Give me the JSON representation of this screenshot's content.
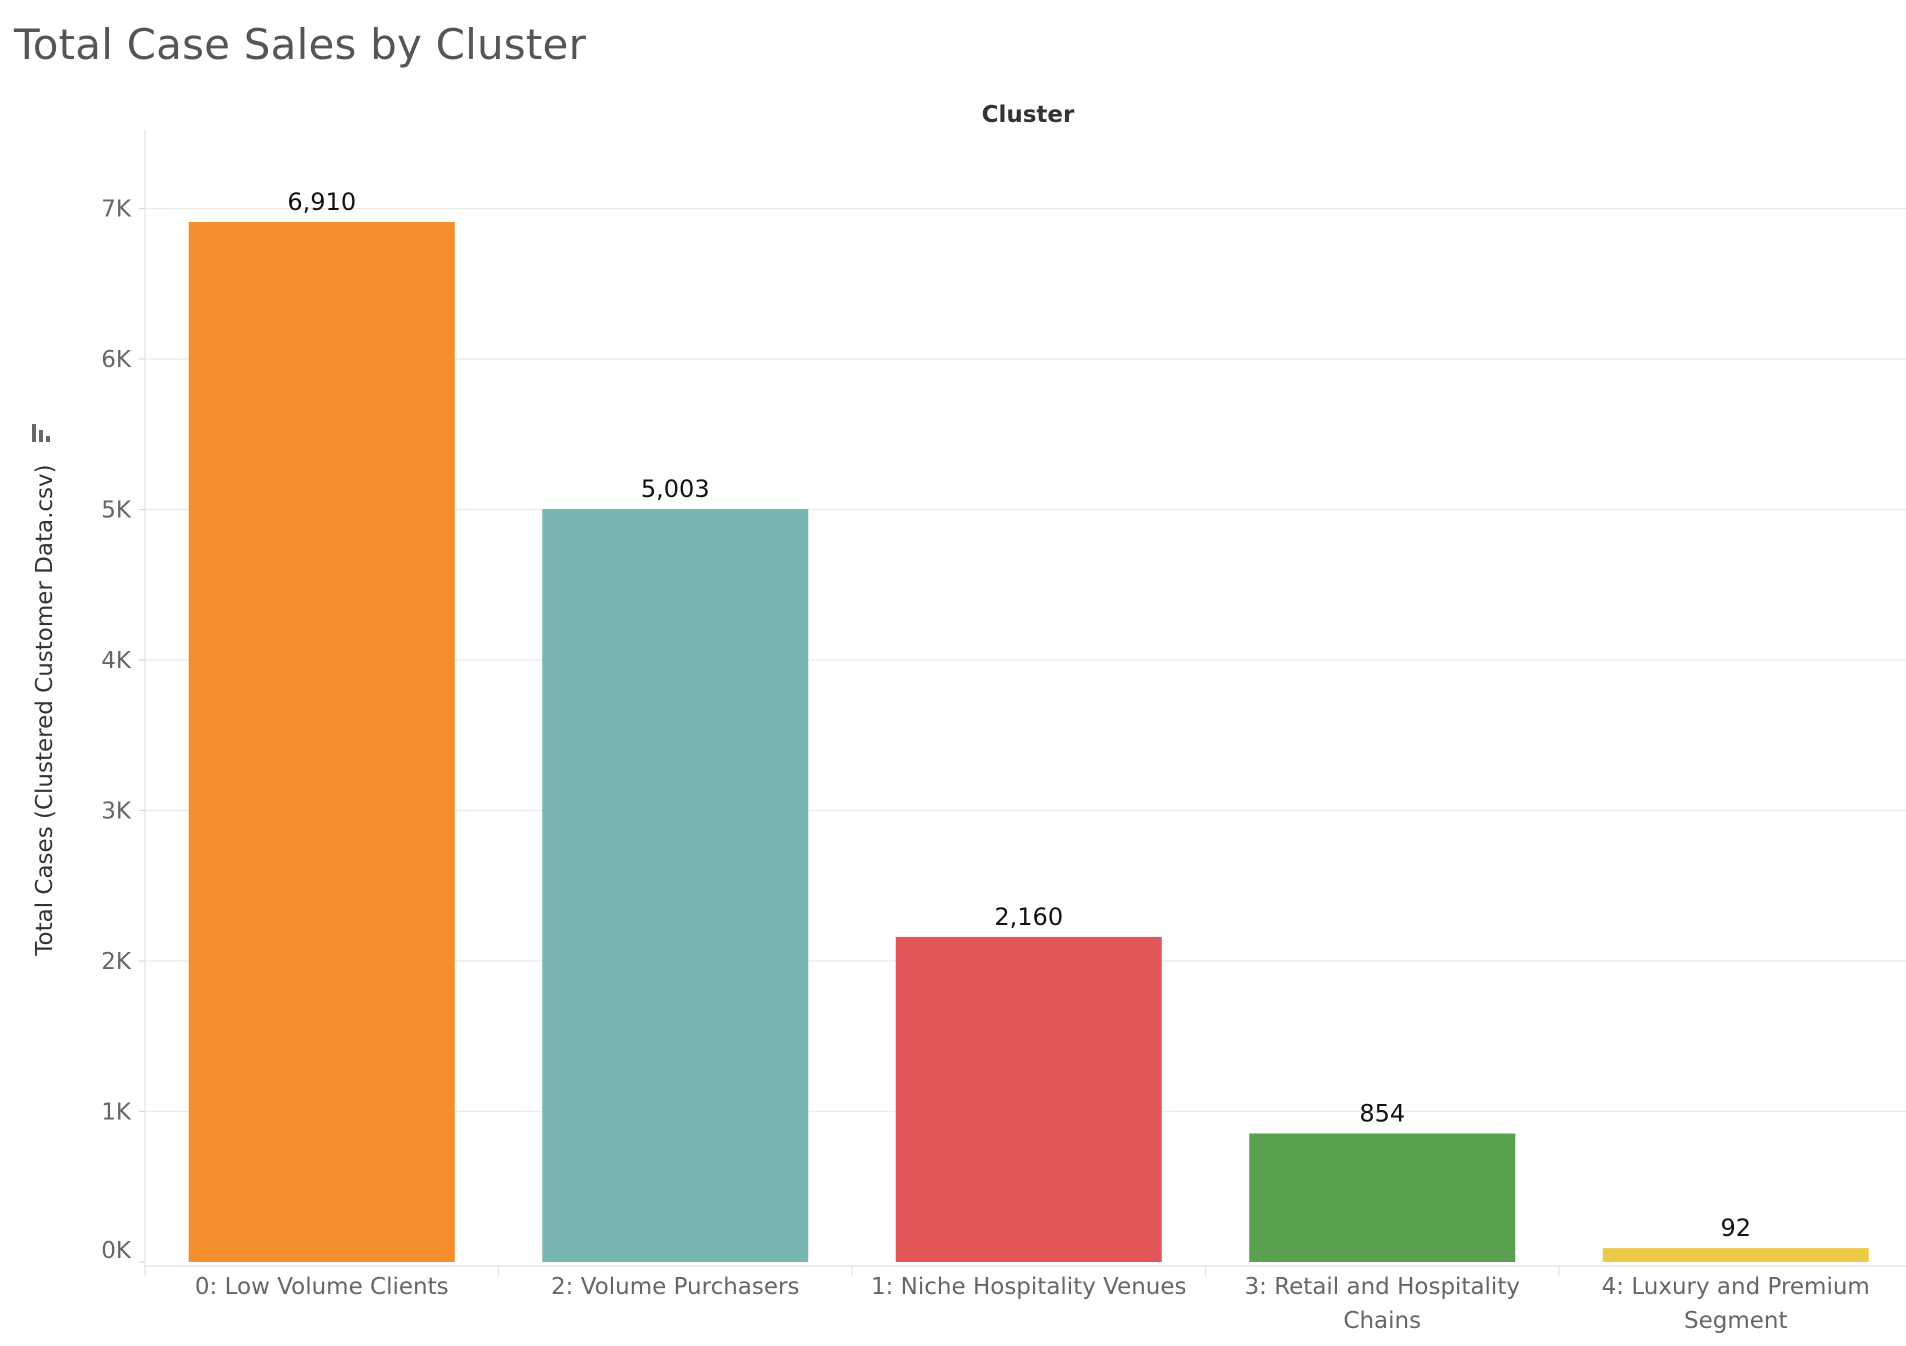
{
  "title": "Total Case Sales by Cluster",
  "chart_data": {
    "type": "bar",
    "header": "Cluster",
    "ylabel": "Total Cases (Clustered Customer Data.csv)",
    "xlabel": "",
    "ylim": [
      0,
      7400
    ],
    "yticks": [
      0,
      1000,
      2000,
      3000,
      4000,
      5000,
      6000,
      7000
    ],
    "ytick_labels": [
      "0K",
      "1K",
      "2K",
      "3K",
      "4K",
      "5K",
      "6K",
      "7K"
    ],
    "grid": true,
    "categories": [
      [
        "0: Low Volume Clients"
      ],
      [
        "2: Volume Purchasers"
      ],
      [
        "1: Niche Hospitality Venues"
      ],
      [
        "3: Retail and Hospitality",
        "Chains"
      ],
      [
        "4: Luxury and Premium",
        "Segment"
      ]
    ],
    "values": [
      6910,
      5003,
      2160,
      854,
      92
    ],
    "value_labels": [
      "6,910",
      "5,003",
      "2,160",
      "854",
      "92"
    ],
    "colors": [
      "#F28E2B",
      "#7AB6B1",
      "#E15759",
      "#59A14F",
      "#EDC948"
    ]
  }
}
